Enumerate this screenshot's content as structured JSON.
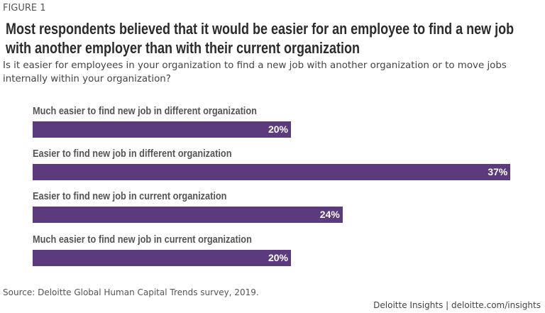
{
  "figure_label": "FIGURE 1",
  "chart_data": {
    "type": "bar",
    "orientation": "horizontal",
    "title": "Most respondents believed that it would be easier for an employee to find a new job with another employer than with their current organization",
    "subtitle": "Is it easier for employees in your organization to find a new job with another organization or to move jobs internally within your organization?",
    "categories": [
      "Much easier to find new job in different organization",
      "Easier to find new job in different organization",
      "Easier to find new job in current organization",
      "Much easier to find new job in current organization"
    ],
    "values": [
      20,
      37,
      24,
      20
    ],
    "data_labels": [
      "20%",
      "37%",
      "24%",
      "20%"
    ],
    "unit": "%",
    "bar_color": "#5b3a7e",
    "grid": false
  },
  "source": "Source: Deloitte Global Human Capital Trends survey, 2019.",
  "brand": "Deloitte Insights | deloitte.com/insights"
}
